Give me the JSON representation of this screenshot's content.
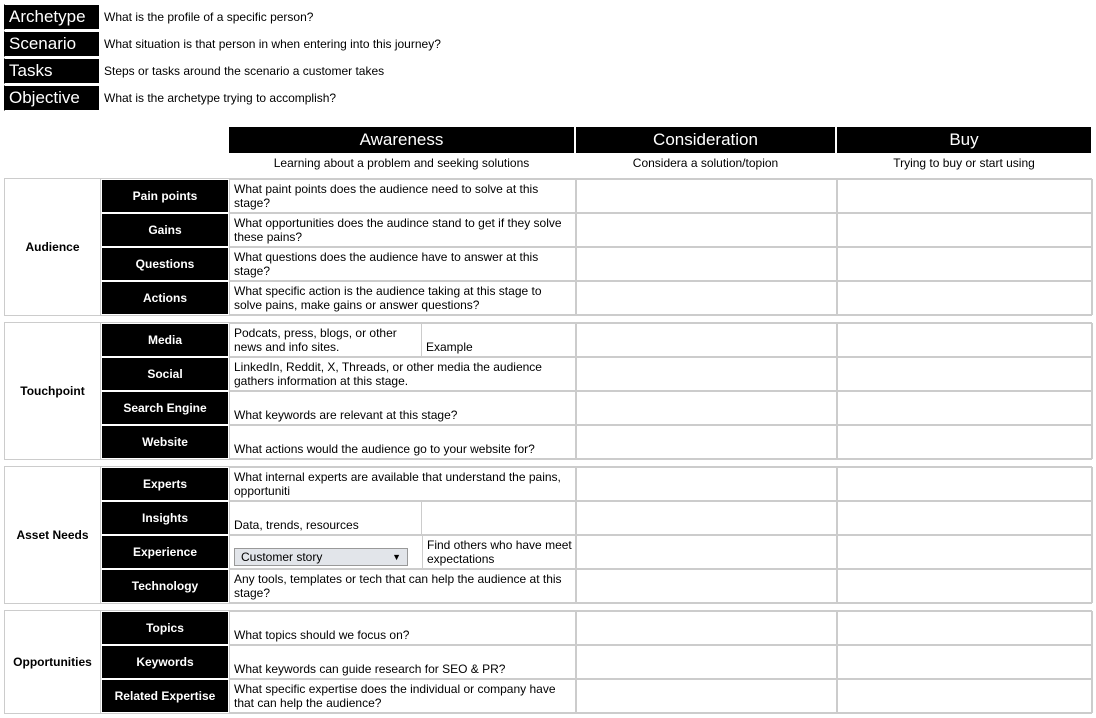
{
  "top": [
    {
      "label": "Archetype",
      "desc": "What is the profile of a specific person?"
    },
    {
      "label": "Scenario",
      "desc": "What situation is that person in when entering into this journey?"
    },
    {
      "label": "Tasks",
      "desc": "Steps or tasks around the scenario a customer takes"
    },
    {
      "label": "Objective",
      "desc": "What is the archetype trying to accomplish?"
    }
  ],
  "stages": {
    "headers": [
      "Awareness",
      "Consideration",
      "Buy"
    ],
    "subs": [
      "Learning about a problem and seeking solutions",
      "Considera a solution/topion",
      "Trying to buy or start using"
    ]
  },
  "sections": {
    "audience": {
      "title": "Audience",
      "rows": [
        {
          "label": "Pain points",
          "aw": "What paint points does the audience need to solve at this stage?"
        },
        {
          "label": "Gains",
          "aw": "What opportunities does the audince stand to get if they solve these pains?",
          "top": true
        },
        {
          "label": "Questions",
          "aw": "What questions does the audience have to answer at this stage?"
        },
        {
          "label": "Actions",
          "aw": "What specific action is the audience taking at this stage to solve pains, make gains or answer questions?",
          "top": true
        }
      ]
    },
    "touchpoint": {
      "title": "Touchpoint",
      "rows": [
        {
          "label": "Media",
          "aw": "Podcats, press, blogs, or other news and info sites.",
          "aw2": "Example",
          "split": true
        },
        {
          "label": "Social",
          "aw": "LinkedIn, Reddit, X, Threads, or other media the audience gathers information at this stage."
        },
        {
          "label": "Search Engine",
          "aw": "What keywords are relevant at this stage?"
        },
        {
          "label": "Website",
          "aw": "What actions would the audience go to your website for?"
        }
      ]
    },
    "asset": {
      "title": "Asset Needs",
      "rows": [
        {
          "label": "Experts",
          "aw": "What internal experts are available that understand the pains, opportuniti"
        },
        {
          "label": "Insights",
          "aw": "Data, trends, resources",
          "split_empty": true
        },
        {
          "label": "Experience",
          "dropdown": "Customer story",
          "aw2": "Find others who have meet expectations",
          "dd": true
        },
        {
          "label": "Technology",
          "aw": "Any tools, templates or tech that can help the audience at this stage?"
        }
      ]
    },
    "opps": {
      "title": "Opportunities",
      "rows": [
        {
          "label": "Topics",
          "aw": "What topics should we focus on?"
        },
        {
          "label": "Keywords",
          "aw": "What keywords can guide research for SEO & PR?"
        },
        {
          "label": "Related Expertise",
          "aw": "What specific expertise does the individual or company have that can help the audience?",
          "top": true
        }
      ]
    }
  }
}
